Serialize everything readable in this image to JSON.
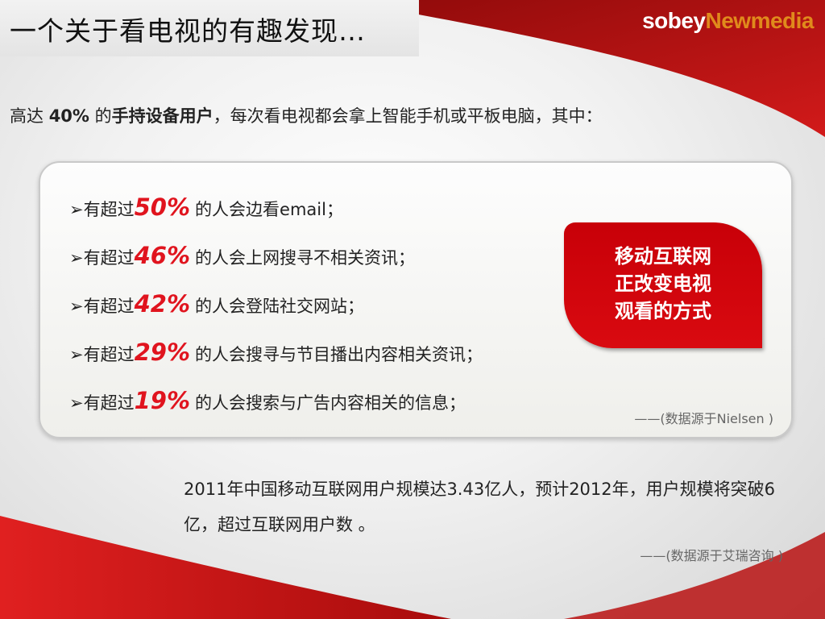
{
  "slide": {
    "title": "一个关于看电视的有趣发现…",
    "logo": {
      "part1": "sobey",
      "part2": "Newmedia"
    },
    "intro": {
      "prefix": "高达 ",
      "percent": "40%",
      "mid": " 的",
      "bold": "手持设备用户",
      "suffix": "，每次看电视都会拿上智能手机或平板电脑，其中："
    },
    "items": [
      {
        "prefix": "➢有超过",
        "pct": "50%",
        "text": "的人会边看email；"
      },
      {
        "prefix": "➢有超过",
        "pct": "46%",
        "text": "的人会上网搜寻不相关资讯；"
      },
      {
        "prefix": "➢有超过",
        "pct": "42%",
        "text": "的人会登陆社交网站；"
      },
      {
        "prefix": "➢有超过",
        "pct": "29%",
        "text": "的人会搜寻与节目播出内容相关资讯；"
      },
      {
        "prefix": "➢有超过",
        "pct": "19%",
        "text": "的人会搜索与广告内容相关的信息；"
      }
    ],
    "source1": "——(数据源于Nielsen )",
    "callout": [
      "移动互联网",
      "正改变电视",
      "观看的方式"
    ],
    "stat": "2011年中国移动互联网用户规模达3.43亿人，预计2012年，用户规模将突破6亿，超过互联网用户数 。",
    "source2": "——(数据源于艾瑞咨询 )",
    "colors": {
      "accent": "#e0141e",
      "brand_red": "#c80008",
      "logo_orange": "#e08a1c"
    }
  }
}
